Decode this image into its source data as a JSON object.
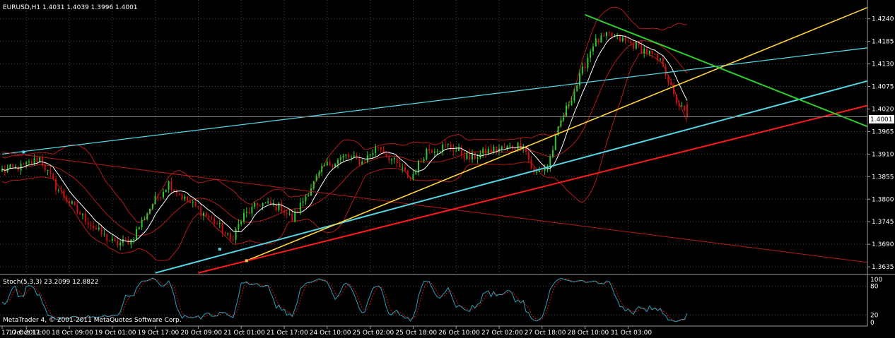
{
  "header": {
    "symbol_line": "EURUSD,H1  1.4031 1.4039 1.3996 1.4001",
    "copyright": "MetaTrader 4, © 2001-2011 MetaQuotes Software Corp."
  },
  "stoch_panel": {
    "label": "Stoch(5,3,3) 23.2099 12.8822",
    "scale_labels": [
      "100",
      "80",
      "20",
      "0"
    ],
    "main_color": "#2aa0b8",
    "signal_color": "#d01010",
    "levels": [
      80,
      20
    ]
  },
  "colors": {
    "background": "#000000",
    "grid": "#4a4a4a",
    "bull_candle": "#2ec82e",
    "bear_candle": "#cc1010",
    "bollinger": "#b31b1b",
    "moving_average": "#ffffff",
    "axis_text": "#ffffff"
  },
  "chart_data": {
    "type": "candlestick",
    "symbol": "EURUSD",
    "timeframe": "H1",
    "ohlc_last": {
      "open": 1.4031,
      "high": 1.4039,
      "low": 1.3996,
      "close": 1.4001
    },
    "current_price_label": "1.4001",
    "ylim": [
      1.3618,
      1.4286
    ],
    "y_ticks": [
      "1.4240",
      "1.4185",
      "1.4130",
      "1.4075",
      "1.4020",
      "1.3965",
      "1.3910",
      "1.3855",
      "1.3800",
      "1.3745",
      "1.3690",
      "1.3635"
    ],
    "x_ticks": [
      "17 Oct 2011",
      "17 Oct 17:00",
      "18 Oct 09:00",
      "19 Oct 01:00",
      "19 Oct 17:00",
      "20 Oct 09:00",
      "21 Oct 01:00",
      "21 Oct 17:00",
      "24 Oct 10:00",
      "25 Oct 02:00",
      "25 Oct 18:00",
      "26 Oct 10:00",
      "27 Oct 02:00",
      "27 Oct 18:00",
      "28 Oct 10:00",
      "31 Oct 03:00"
    ],
    "bar_count": 240,
    "price_path": [
      [
        0,
        1.387
      ],
      [
        8,
        1.388
      ],
      [
        14,
        1.39
      ],
      [
        20,
        1.383
      ],
      [
        28,
        1.377
      ],
      [
        36,
        1.372
      ],
      [
        42,
        1.369
      ],
      [
        48,
        1.37
      ],
      [
        56,
        1.379
      ],
      [
        62,
        1.384
      ],
      [
        68,
        1.38
      ],
      [
        74,
        1.377
      ],
      [
        80,
        1.374
      ],
      [
        85,
        1.37
      ],
      [
        90,
        1.376
      ],
      [
        96,
        1.379
      ],
      [
        104,
        1.378
      ],
      [
        108,
        1.375
      ],
      [
        114,
        1.382
      ],
      [
        120,
        1.388
      ],
      [
        128,
        1.3905
      ],
      [
        134,
        1.389
      ],
      [
        140,
        1.393
      ],
      [
        146,
        1.389
      ],
      [
        152,
        1.385
      ],
      [
        158,
        1.392
      ],
      [
        166,
        1.393
      ],
      [
        174,
        1.39
      ],
      [
        182,
        1.392
      ],
      [
        188,
        1.3925
      ],
      [
        194,
        1.3935
      ],
      [
        198,
        1.386
      ],
      [
        203,
        1.388
      ],
      [
        208,
        1.399
      ],
      [
        214,
        1.408
      ],
      [
        220,
        1.418
      ],
      [
        226,
        1.42
      ],
      [
        234,
        1.418
      ],
      [
        240,
        1.416
      ],
      [
        246,
        1.413
      ],
      [
        250,
        1.405
      ],
      [
        255,
        1.4001
      ]
    ],
    "trendlines": [
      {
        "color": "#55d6e6",
        "width": 1.3,
        "start": {
          "bar": 0,
          "price": 1.391
        },
        "end": {
          "bar": 323,
          "price": 1.417
        }
      },
      {
        "color": "#b31b1b",
        "width": 1,
        "start": {
          "bar": 0,
          "price": 1.3915
        },
        "end": {
          "bar": 323,
          "price": 1.3645
        }
      },
      {
        "color": "#55d6e6",
        "width": 2,
        "start": {
          "bar": 57,
          "price": 1.362
        },
        "end": {
          "bar": 323,
          "price": 1.409
        }
      },
      {
        "color": "#ffd23c",
        "width": 1.6,
        "start": {
          "bar": 91,
          "price": 1.365
        },
        "end": {
          "bar": 323,
          "price": 1.427
        }
      },
      {
        "color": "#ff1a1a",
        "width": 2,
        "start": {
          "bar": 73,
          "price": 1.362
        },
        "end": {
          "bar": 323,
          "price": 1.403
        }
      },
      {
        "color": "#2ecc2e",
        "width": 2,
        "start": {
          "bar": 217,
          "price": 1.425
        },
        "end": {
          "bar": 323,
          "price": 1.3975
        }
      }
    ],
    "anchor_points": [
      {
        "bar": 8,
        "price": 1.3915,
        "color": "#55d6e6"
      },
      {
        "bar": 81,
        "price": 1.3678,
        "color": "#55d6e6"
      },
      {
        "bar": 91,
        "price": 1.365,
        "color": "#ffd23c"
      }
    ]
  }
}
